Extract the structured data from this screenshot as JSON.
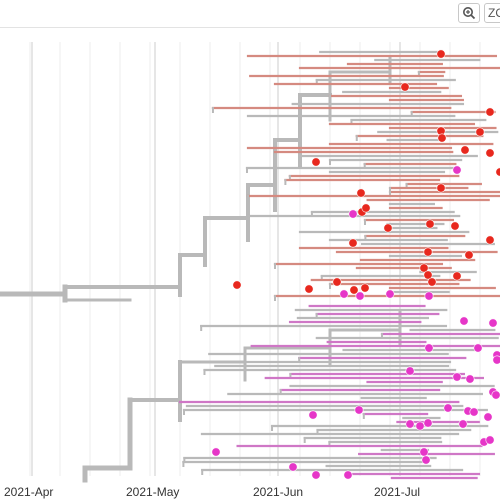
{
  "toolbar": {
    "zoom_in_icon": "zoom-in-icon",
    "zoom_out_label": "ZO"
  },
  "axis": {
    "ticks": [
      "2021-Apr",
      "2021-May",
      "2021-Jun",
      "2021-Jul"
    ]
  },
  "colors": {
    "branch": "#b9b9b9",
    "grid_major": "#d5d5d5",
    "grid_minor": "#eeeeee",
    "red_tip": "#e8281e",
    "magenta_tip": "#e636c8",
    "red_branch": "#d58a80",
    "magenta_branch": "#cf77c6"
  }
}
